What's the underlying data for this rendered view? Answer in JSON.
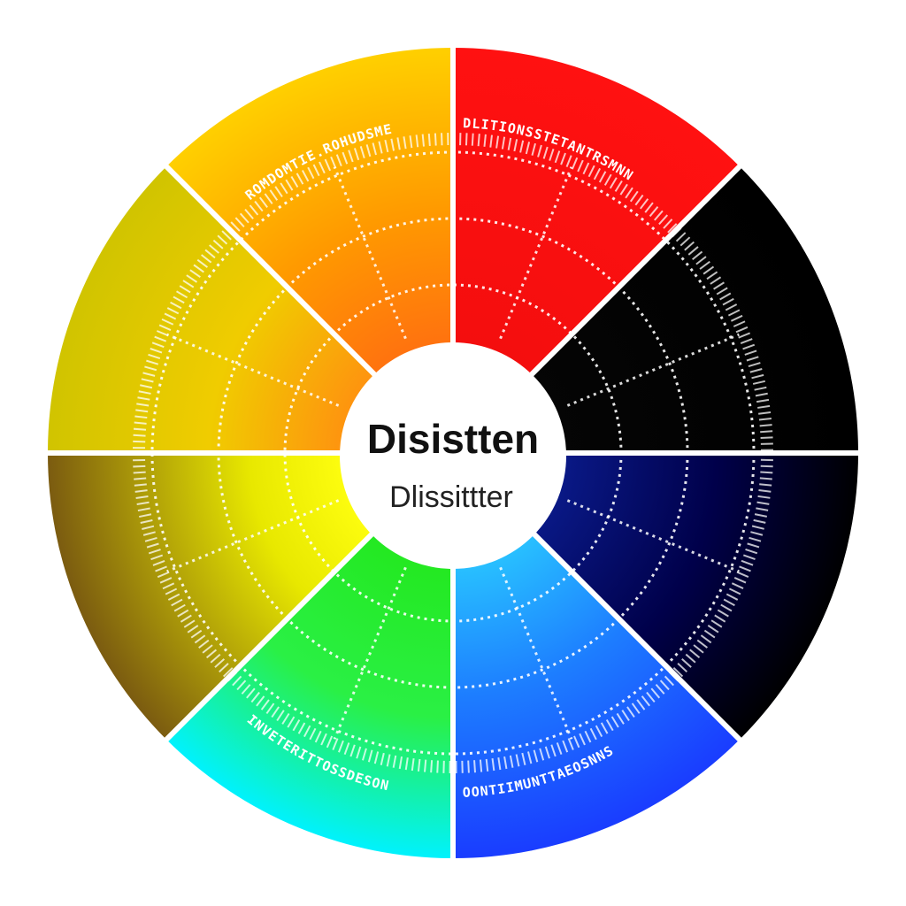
{
  "center": {
    "title": "Disistten",
    "subtitle": "Dlissittter"
  },
  "segments": [
    {
      "name": "red",
      "color_outer": "#ff1111",
      "color_inner": "#f40e0e"
    },
    {
      "name": "black",
      "color_outer": "#000000",
      "color_inner": "#050505"
    },
    {
      "name": "navy",
      "color_outer": "#000000",
      "color_inner": "#0a1a8a"
    },
    {
      "name": "blue",
      "color_outer": "#1a3cff",
      "color_inner": "#29b6ff"
    },
    {
      "name": "cyan",
      "color_outer": "#00f2ff",
      "color_inner": "#23e81e"
    },
    {
      "name": "olive",
      "color_outer": "#8a6a10",
      "color_inner": "#ffff10"
    },
    {
      "name": "yellow",
      "color_outer": "#d8c400",
      "color_inner": "#ff9a10"
    },
    {
      "name": "orange",
      "color_outer": "#ffb000",
      "color_inner": "#ff7f10"
    }
  ],
  "labels": {
    "top_left": "ROMDOMTIE.ROHUDSME",
    "top_right": "DLITIONSSTETANTRSMNN",
    "bottom_left": "INVETERITTOSSDESON",
    "bottom_right": "OONTIIMUNTTAEOSNNS"
  }
}
